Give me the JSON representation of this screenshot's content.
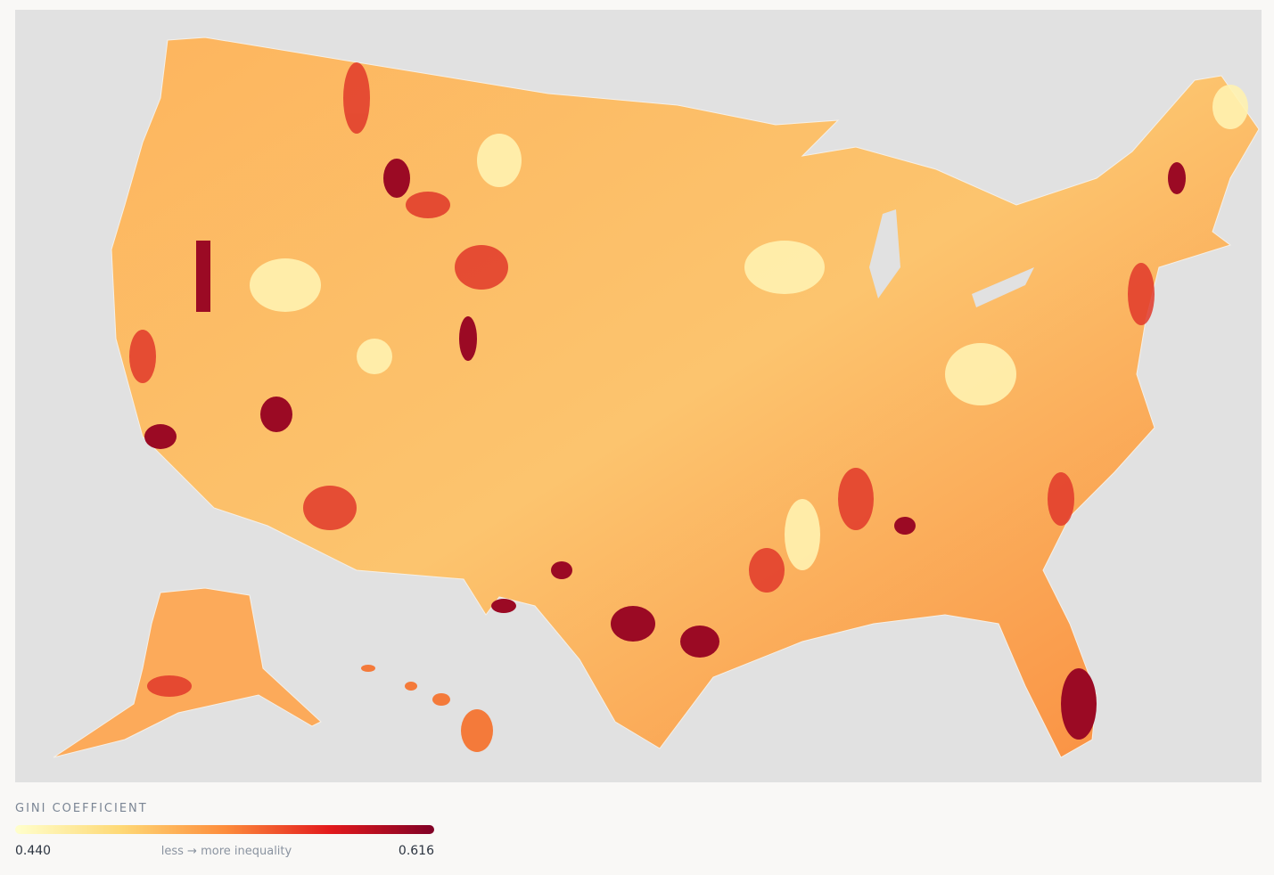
{
  "legend": {
    "title": "GINI COEFFICIENT",
    "min": {
      "value": 0.44,
      "label": "0.440"
    },
    "max": {
      "value": 0.616,
      "label": "0.616"
    },
    "caption": "less → more inequality",
    "colors": [
      "#ffffcc",
      "#fed976",
      "#fd8d3c",
      "#e31a1c",
      "#800026"
    ]
  }
}
